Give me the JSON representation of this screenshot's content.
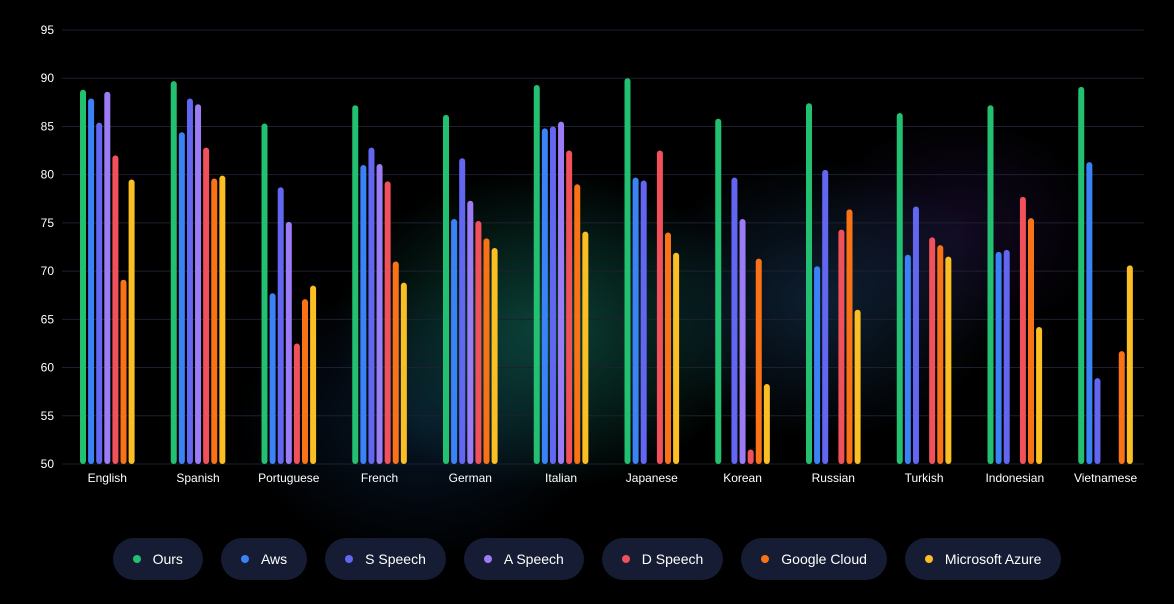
{
  "chart_data": {
    "type": "bar",
    "ylim": [
      50,
      95
    ],
    "yticks": [
      50,
      55,
      60,
      65,
      70,
      75,
      80,
      85,
      90,
      95
    ],
    "grid": true,
    "legend_position": "bottom",
    "categories": [
      "English",
      "Spanish",
      "Portuguese",
      "French",
      "German",
      "Italian",
      "Japanese",
      "Korean",
      "Russian",
      "Turkish",
      "Indonesian",
      "Vietnamese"
    ],
    "series": [
      {
        "name": "Ours",
        "color": "#22c070",
        "values": [
          88.8,
          89.7,
          85.3,
          87.2,
          86.2,
          89.3,
          90.0,
          85.8,
          87.4,
          86.4,
          87.2,
          89.1
        ]
      },
      {
        "name": "Aws",
        "color": "#3b82f6",
        "values": [
          87.9,
          84.4,
          67.7,
          81.0,
          75.4,
          84.8,
          79.7,
          null,
          70.5,
          71.7,
          72.0,
          81.3
        ]
      },
      {
        "name": "S Speech",
        "color": "#6366f1",
        "values": [
          85.4,
          87.9,
          78.7,
          82.8,
          81.7,
          85.0,
          79.4,
          79.7,
          80.5,
          76.7,
          72.2,
          58.9
        ]
      },
      {
        "name": "A Speech",
        "color": "#9b7cf5",
        "values": [
          88.6,
          87.3,
          75.1,
          81.1,
          77.3,
          85.5,
          null,
          75.4,
          null,
          null,
          null,
          null
        ]
      },
      {
        "name": "D Speech",
        "color": "#f0515b",
        "values": [
          82.0,
          82.8,
          62.5,
          79.3,
          75.2,
          82.5,
          82.5,
          51.5,
          74.3,
          73.5,
          77.7,
          null
        ]
      },
      {
        "name": "Google Cloud",
        "color": "#f97316",
        "values": [
          69.1,
          79.6,
          67.1,
          71.0,
          73.4,
          79.0,
          74.0,
          71.3,
          76.4,
          72.7,
          75.5,
          61.7
        ]
      },
      {
        "name": "Microsoft Azure",
        "color": "#fbbf24",
        "values": [
          79.5,
          79.9,
          68.5,
          68.8,
          72.4,
          74.1,
          71.9,
          58.3,
          66.0,
          71.5,
          64.2,
          70.6
        ]
      }
    ]
  }
}
